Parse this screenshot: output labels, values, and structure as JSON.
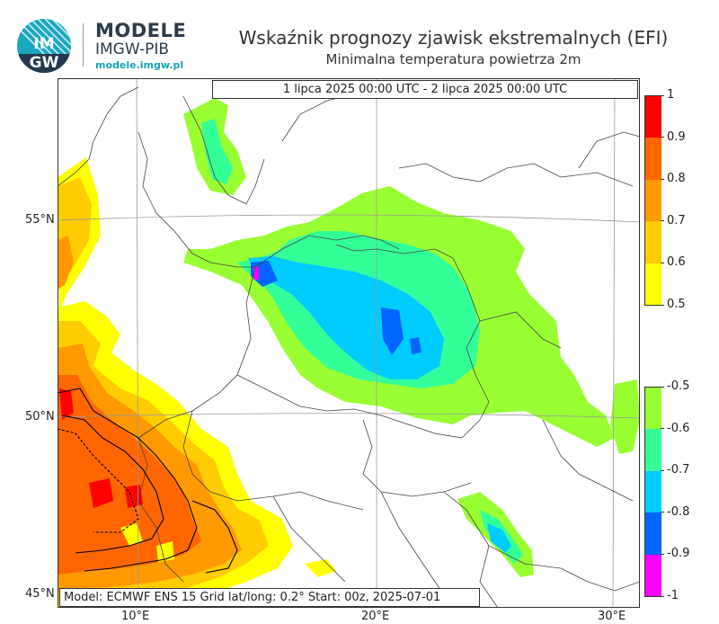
{
  "logo": {
    "badge_text": "IMGW",
    "line1": "MODELE",
    "line2": "IMGW-PIB",
    "line3": "modele.imgw.pl"
  },
  "header": {
    "title": "Wskaźnik prognozy zjawisk ekstremalnych (EFI)",
    "subtitle": "Minimalna temperatura powietrza 2m"
  },
  "map": {
    "date_range": "1 lipca 2025 00:00 UTC - 2 lipca 2025 00:00 UTC",
    "footer": "Model: ECMWF  ENS 15  Grid lat/long: 0.2°  Start: 00z, 2025-07-01",
    "lat_labels": [
      "55°N",
      "50°N",
      "45°N"
    ],
    "lon_labels": [
      "10°E",
      "20°E",
      "30°E"
    ],
    "colors": {
      "efi_0_5": "#ffff00",
      "efi_0_6": "#ffcc00",
      "efi_0_7": "#ff9900",
      "efi_0_8": "#ff6600",
      "efi_0_9": "#ff0000",
      "efi_m0_5": "#99ff33",
      "efi_m0_6": "#33ff99",
      "efi_m0_7": "#00ccff",
      "efi_m0_8": "#0066ff",
      "efi_m0_9": "#ff00ff"
    }
  },
  "colorbar_warm": {
    "ticks": [
      "1",
      "0.9",
      "0.8",
      "0.7",
      "0.6",
      "0.5"
    ],
    "colors": [
      "#ff0000",
      "#ff6600",
      "#ff9900",
      "#ffcc00",
      "#ffff00"
    ]
  },
  "colorbar_cold": {
    "ticks": [
      "-0.5",
      "-0.6",
      "-0.7",
      "-0.8",
      "-0.9",
      "-1"
    ],
    "colors": [
      "#99ff33",
      "#33ff99",
      "#00ccff",
      "#0066ff",
      "#ff00ff"
    ]
  }
}
